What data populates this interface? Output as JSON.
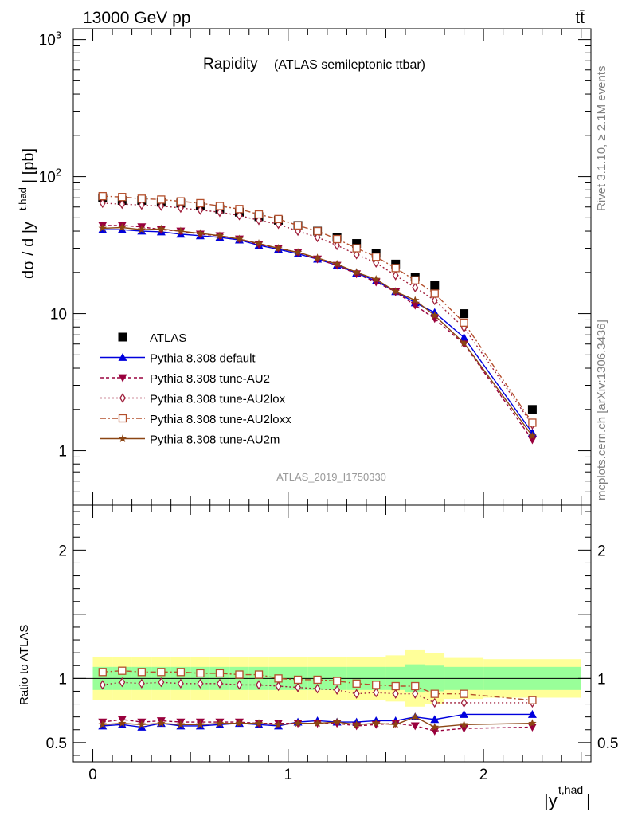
{
  "header": {
    "left": "13000 GeV pp",
    "right": "tt̄"
  },
  "plot_title": {
    "main": "Rapidity",
    "sub": "(ATLAS semileptonic ttbar)"
  },
  "side_labels": {
    "rivet": "Rivet 3.1.10, ≥ 2.1M events",
    "mcplots": "mcplots.cern.ch [arXiv:1306.3436]"
  },
  "analysis_id": "ATLAS_2019_I1750330",
  "colors": {
    "atlas": "#000000",
    "default": "#0000dd",
    "au2": "#99003d",
    "au2lox": "#a0203c",
    "au2loxx": "#b4502d",
    "au2m": "#8b4513",
    "band_inner": "#99ff99",
    "band_outer": "#ffff99"
  },
  "chart_data": [
    {
      "type": "scatter",
      "title": "Rapidity (ATLAS semileptonic ttbar)",
      "ylabel": "dσ / d |y^t,had| [pb]",
      "xlabel": "|y^t,had|",
      "yscale": "log",
      "ylim": [
        0.4,
        1200
      ],
      "xlim": [
        -0.1,
        2.55
      ],
      "y_ticks": [
        "1",
        "10",
        "10²",
        "10³"
      ],
      "x_ticks": [
        "0",
        "1",
        "2"
      ],
      "x": [
        0.05,
        0.15,
        0.25,
        0.35,
        0.45,
        0.55,
        0.65,
        0.75,
        0.85,
        0.95,
        1.05,
        1.15,
        1.25,
        1.35,
        1.45,
        1.55,
        1.65,
        1.75,
        1.9,
        2.25
      ],
      "x_edges": [
        0.0,
        0.1,
        0.2,
        0.3,
        0.4,
        0.5,
        0.6,
        0.7,
        0.8,
        0.9,
        1.0,
        1.1,
        1.2,
        1.3,
        1.4,
        1.5,
        1.6,
        1.7,
        1.8,
        2.0,
        2.5
      ],
      "legend_placement": "middle-left",
      "series": [
        {
          "key": "atlas",
          "name": "ATLAS",
          "marker": "square",
          "values": [
            70,
            67,
            67,
            65,
            64,
            61,
            58,
            55,
            51,
            48,
            44,
            40,
            36,
            32.5,
            27.5,
            23,
            18.5,
            16,
            10,
            2.0
          ]
        },
        {
          "key": "default",
          "name": "Pythia 8.308 default",
          "marker": "triangle-up",
          "dash": "",
          "values": [
            41,
            41,
            40,
            39.5,
            38,
            37,
            36,
            34.5,
            31.5,
            29.5,
            27.3,
            25,
            22.5,
            19.8,
            17.3,
            14.5,
            12.0,
            10.2,
            6.7,
            1.35
          ]
        },
        {
          "key": "au2",
          "name": "Pythia 8.308 tune-AU2",
          "marker": "triangle-down",
          "dash": "4,3",
          "values": [
            44,
            44,
            43,
            41,
            40,
            38,
            37,
            35,
            32,
            30,
            28,
            25,
            22.5,
            19.5,
            17,
            14.4,
            11.5,
            9.2,
            6.0,
            1.2
          ]
        },
        {
          "key": "au2lox",
          "name": "Pythia 8.308 tune-AU2lox",
          "marker": "diamond",
          "dash": "2,3",
          "values": [
            64,
            63,
            62,
            61,
            59,
            57,
            55,
            52,
            48,
            45,
            40,
            36,
            31.5,
            27,
            23.5,
            19,
            15.5,
            12.5,
            7.9,
            1.55
          ]
        },
        {
          "key": "au2loxx",
          "name": "Pythia 8.308 tune-AU2loxx",
          "marker": "square-open",
          "dash": "7,3,2,3",
          "values": [
            72,
            71,
            69,
            68,
            66,
            64,
            61,
            58,
            53,
            49,
            44,
            40,
            35,
            30,
            26,
            21.5,
            17.5,
            14,
            8.6,
            1.6
          ]
        },
        {
          "key": "au2m",
          "name": "Pythia 8.308 tune-AU2m",
          "marker": "star",
          "dash": "",
          "values": [
            42,
            42.5,
            41,
            41.5,
            40,
            38.5,
            37,
            35,
            32.5,
            30,
            28,
            25.5,
            23,
            20,
            17.8,
            14.5,
            12.5,
            9.7,
            6.1,
            1.28
          ]
        }
      ]
    },
    {
      "type": "line",
      "ylabel": "Ratio to ATLAS",
      "xlabel": "|y^t,had|",
      "ylim": [
        0.35,
        2.35
      ],
      "xlim": [
        -0.1,
        2.55
      ],
      "y_ticks": [
        "0.5",
        "1",
        "2"
      ],
      "x_ticks": [
        "0",
        "1",
        "2"
      ],
      "x": [
        0.05,
        0.15,
        0.25,
        0.35,
        0.45,
        0.55,
        0.65,
        0.75,
        0.85,
        0.95,
        1.05,
        1.15,
        1.25,
        1.35,
        1.45,
        1.55,
        1.65,
        1.75,
        1.9,
        2.25
      ],
      "x_edges": [
        0.0,
        0.1,
        0.2,
        0.3,
        0.4,
        0.5,
        0.6,
        0.7,
        0.8,
        0.9,
        1.0,
        1.1,
        1.2,
        1.3,
        1.4,
        1.5,
        1.6,
        1.7,
        1.8,
        2.0,
        2.5
      ],
      "reference": 1.0,
      "band_inner_halfwidth": [
        0.09,
        0.09,
        0.09,
        0.09,
        0.09,
        0.09,
        0.09,
        0.09,
        0.09,
        0.09,
        0.09,
        0.09,
        0.09,
        0.09,
        0.09,
        0.09,
        0.11,
        0.1,
        0.09,
        0.09
      ],
      "band_outer_halfwidth": [
        0.17,
        0.17,
        0.17,
        0.17,
        0.17,
        0.17,
        0.17,
        0.17,
        0.17,
        0.17,
        0.17,
        0.17,
        0.17,
        0.17,
        0.17,
        0.18,
        0.22,
        0.2,
        0.16,
        0.15
      ],
      "series": [
        {
          "key": "default",
          "marker": "triangle-up",
          "dash": "",
          "values": [
            0.63,
            0.64,
            0.62,
            0.65,
            0.63,
            0.63,
            0.64,
            0.65,
            0.64,
            0.63,
            0.66,
            0.67,
            0.66,
            0.66,
            0.67,
            0.67,
            0.7,
            0.68,
            0.72,
            0.72
          ]
        },
        {
          "key": "au2",
          "marker": "triangle-down",
          "dash": "4,3",
          "values": [
            0.66,
            0.68,
            0.66,
            0.67,
            0.66,
            0.66,
            0.66,
            0.66,
            0.65,
            0.65,
            0.65,
            0.65,
            0.65,
            0.63,
            0.64,
            0.65,
            0.63,
            0.59,
            0.61,
            0.62
          ]
        },
        {
          "key": "au2lox",
          "marker": "diamond",
          "dash": "2,3",
          "values": [
            0.95,
            0.97,
            0.96,
            0.97,
            0.96,
            0.96,
            0.96,
            0.95,
            0.95,
            0.94,
            0.93,
            0.92,
            0.91,
            0.88,
            0.89,
            0.88,
            0.88,
            0.81,
            0.81,
            0.81
          ]
        },
        {
          "key": "au2loxx",
          "marker": "square-open",
          "dash": "7,3,2,3",
          "values": [
            1.05,
            1.06,
            1.05,
            1.05,
            1.05,
            1.04,
            1.04,
            1.03,
            1.03,
            1.0,
            0.99,
            0.99,
            0.98,
            0.96,
            0.95,
            0.94,
            0.94,
            0.88,
            0.88,
            0.83
          ]
        },
        {
          "key": "au2m",
          "marker": "star",
          "dash": "",
          "values": [
            0.64,
            0.65,
            0.64,
            0.65,
            0.64,
            0.64,
            0.65,
            0.65,
            0.65,
            0.64,
            0.65,
            0.65,
            0.66,
            0.64,
            0.65,
            0.64,
            0.7,
            0.62,
            0.64,
            0.65
          ]
        }
      ]
    }
  ]
}
